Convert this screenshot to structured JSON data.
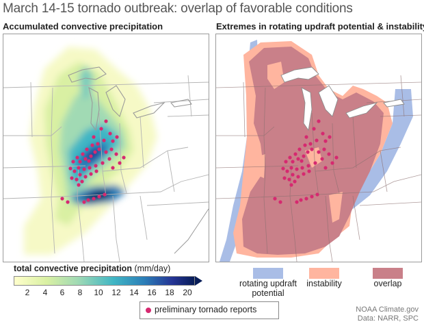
{
  "title": "March 14-15 tornado outbreak: overlap of favorable conditions",
  "left_panel": {
    "title": "Accumulated convective precipitation"
  },
  "right_panel": {
    "title": "Extremes in rotating updraft potential & instability"
  },
  "colorbar": {
    "title_bold": "total convective precipitation",
    "title_units": "(mm/day)",
    "ticks": [
      "2",
      "4",
      "6",
      "8",
      "10",
      "12",
      "14",
      "16",
      "18",
      "20"
    ],
    "colors": [
      "#ffffcc",
      "#d9f0a3",
      "#a1dab4",
      "#41b6c4",
      "#2c7fb8",
      "#253494",
      "#081d58"
    ]
  },
  "overlap_legend": [
    {
      "label": "rotating updraft potential",
      "color": "#a9bde6"
    },
    {
      "label": "instability",
      "color": "#ffb59f"
    },
    {
      "label": "overlap",
      "color": "#c98089"
    }
  ],
  "tornado_legend": {
    "label": "preliminary tornado reports",
    "color": "#d62970"
  },
  "credit": {
    "line1": "NOAA Climate.gov",
    "line2": "Data: NARR, SPC"
  }
}
